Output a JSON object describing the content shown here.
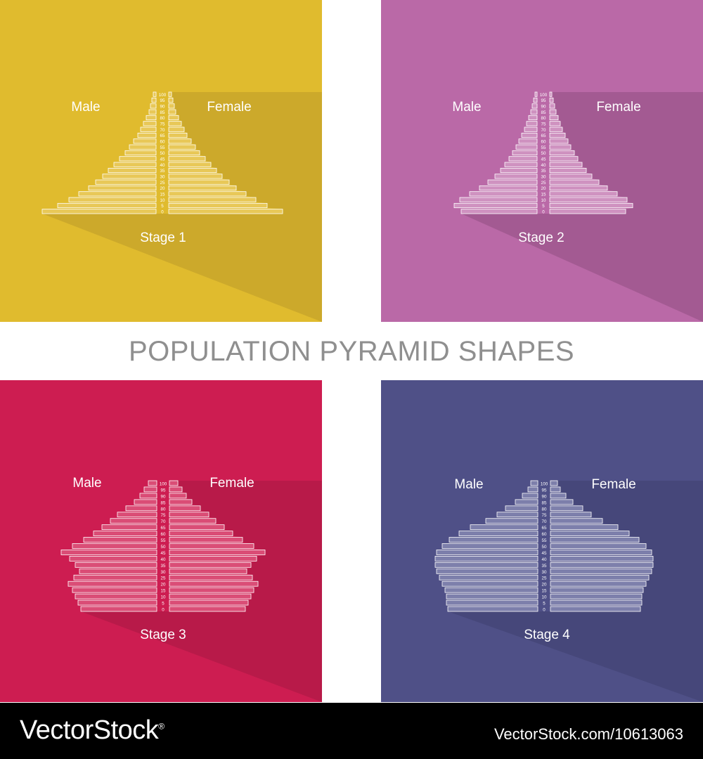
{
  "title": "POPULATION PYRAMID SHAPES",
  "footer": {
    "brand": "VectorStock",
    "reg": "®",
    "id": "VectorStock.com/10613063"
  },
  "panels": [
    {
      "bg": "#e0bb2e",
      "bar": "#f1da8c",
      "shadow": "#cca92b",
      "male": "Male",
      "female": "Female",
      "stage": "Stage 1"
    },
    {
      "bg": "#ba69a7",
      "bar": "#e8c6df",
      "shadow": "#a35a92",
      "male": "Male",
      "female": "Female",
      "stage": "Stage 2"
    },
    {
      "bg": "#cd1d51",
      "bar": "#eb8aa3",
      "shadow": "#b81a49",
      "male": "Male",
      "female": "Female",
      "stage": "Stage 3"
    },
    {
      "bg": "#4f5087",
      "bar": "#b6b8d8",
      "shadow": "#46477a",
      "male": "Male",
      "female": "Female",
      "stage": "Stage 4"
    }
  ],
  "chart_data": [
    {
      "type": "bar",
      "title": "Stage 1",
      "age_labels": [
        "100",
        "95",
        "90",
        "85",
        "80",
        "75",
        "70",
        "65",
        "60",
        "55",
        "50",
        "45",
        "40",
        "35",
        "30",
        "25",
        "20",
        "15",
        "10",
        "5",
        "0"
      ],
      "series": [
        {
          "name": "Male",
          "values": [
            4,
            6,
            8,
            10,
            14,
            18,
            22,
            26,
            32,
            38,
            44,
            52,
            60,
            68,
            76,
            86,
            96,
            110,
            124,
            140,
            162
          ]
        },
        {
          "name": "Female",
          "values": [
            4,
            6,
            8,
            10,
            14,
            18,
            22,
            26,
            32,
            38,
            44,
            52,
            60,
            68,
            76,
            86,
            96,
            110,
            124,
            140,
            162
          ]
        }
      ]
    },
    {
      "type": "bar",
      "title": "Stage 2",
      "age_labels": [
        "100",
        "95",
        "90",
        "85",
        "80",
        "75",
        "70",
        "65",
        "60",
        "55",
        "50",
        "45",
        "40",
        "35",
        "30",
        "25",
        "20",
        "15",
        "10",
        "5",
        "0"
      ],
      "series": [
        {
          "name": "Male",
          "values": [
            3,
            5,
            7,
            9,
            12,
            15,
            18,
            22,
            26,
            30,
            35,
            40,
            46,
            52,
            60,
            70,
            82,
            96,
            110,
            118,
            108
          ]
        },
        {
          "name": "Female",
          "values": [
            3,
            5,
            7,
            9,
            12,
            15,
            18,
            22,
            26,
            30,
            35,
            40,
            46,
            52,
            60,
            70,
            82,
            96,
            110,
            118,
            108
          ]
        }
      ]
    },
    {
      "type": "bar",
      "title": "Stage 3",
      "age_labels": [
        "100",
        "95",
        "90",
        "85",
        "80",
        "75",
        "70",
        "65",
        "60",
        "55",
        "50",
        "45",
        "40",
        "35",
        "30",
        "25",
        "20",
        "15",
        "10",
        "5",
        "0"
      ],
      "series": [
        {
          "name": "Male",
          "values": [
            12,
            18,
            24,
            32,
            44,
            56,
            66,
            78,
            90,
            104,
            120,
            136,
            124,
            116,
            110,
            118,
            126,
            120,
            116,
            112,
            108
          ]
        },
        {
          "name": "Female",
          "values": [
            12,
            18,
            24,
            32,
            44,
            56,
            66,
            78,
            90,
            104,
            120,
            136,
            124,
            116,
            110,
            118,
            126,
            120,
            116,
            112,
            108
          ]
        }
      ]
    },
    {
      "type": "bar",
      "title": "Stage 4",
      "age_labels": [
        "100",
        "95",
        "90",
        "85",
        "80",
        "75",
        "70",
        "65",
        "60",
        "55",
        "50",
        "45",
        "40",
        "35",
        "30",
        "25",
        "20",
        "15",
        "10",
        "5",
        "0"
      ],
      "series": [
        {
          "name": "Male",
          "values": [
            10,
            14,
            22,
            32,
            46,
            58,
            74,
            96,
            112,
            126,
            136,
            144,
            146,
            146,
            144,
            140,
            136,
            132,
            130,
            130,
            128
          ]
        },
        {
          "name": "Female",
          "values": [
            10,
            14,
            22,
            32,
            46,
            58,
            74,
            96,
            112,
            126,
            136,
            144,
            146,
            146,
            144,
            140,
            136,
            132,
            130,
            130,
            128
          ]
        }
      ]
    }
  ]
}
